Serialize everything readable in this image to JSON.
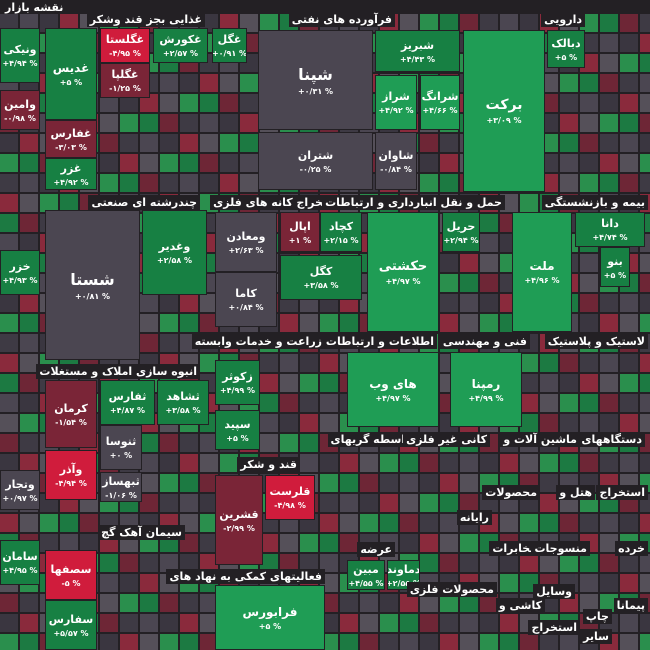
{
  "title": "نقشه بازار",
  "sectors": [
    "غذایی بجز قند وشکر",
    "فرآورده های نفتی",
    "دارویی",
    "چندرشته ای صنعتی",
    "استخراج کانه های فلزی",
    "حمل و نقل انبارداری و ارتباطات",
    "بیمه و بازنشستگی",
    "انبوه سازی املاک و مستغلات",
    "زراعت و خدمات وابسته",
    "اطلاعات و ارتباطات",
    "فنی و مهندسی",
    "لاستیک و پلاستیک",
    "واسطه گریهای",
    "کانی غیر فلزی",
    "ماشین آلات و",
    "دستگاههای",
    "قند و شکر",
    "محصولات",
    "هتل و",
    "استخراج",
    "سیمان آهک گچ",
    "رایانه",
    "عرضه",
    "مخابرات",
    "منسوجات",
    "خرده",
    "فعالیتهای کمکی به نهاد های",
    "محصولات فلزی",
    "وسایل",
    "کاشی و",
    "پیمانا",
    "چاپ",
    "استخراج",
    "سایر"
  ],
  "tiles": [
    {
      "name": "غدیس",
      "change": "+۵ %"
    },
    {
      "name": "غگلستا",
      "change": "-۴/۹۵ %"
    },
    {
      "name": "غکورش",
      "change": "+۲/۵۷ %"
    },
    {
      "name": "غگل",
      "change": "+۰/۹۱ %"
    },
    {
      "name": "غگلپا",
      "change": "-۱/۲۵ %"
    },
    {
      "name": "غفارس",
      "change": "-۳/۰۳ %"
    },
    {
      "name": "غزر",
      "change": "+۴/۹۲ %"
    },
    {
      "name": "ونیکی",
      "change": "+۴/۹۴ %"
    },
    {
      "name": "وامین",
      "change": "-۰/۹۸ %"
    },
    {
      "name": "شپنا",
      "change": "+۰/۳۱ %"
    },
    {
      "name": "شبریز",
      "change": "+۴/۴۳ %"
    },
    {
      "name": "شراز",
      "change": "+۴/۹۲ %"
    },
    {
      "name": "شرانگ",
      "change": "+۴/۶۶ %"
    },
    {
      "name": "شتران",
      "change": "-۰/۲۵ %"
    },
    {
      "name": "شاوان",
      "change": "-۰/۸۴ %"
    },
    {
      "name": "برکت",
      "change": "+۳/۰۹ %"
    },
    {
      "name": "دبالک",
      "change": "+۵ %"
    },
    {
      "name": "شستا",
      "change": "+۰/۸۱ %"
    },
    {
      "name": "وغدیر",
      "change": "+۲/۵۸ %"
    },
    {
      "name": "ومعادن",
      "change": "+۲/۶۳ %"
    },
    {
      "name": "کاما",
      "change": "+۰/۸۴ %"
    },
    {
      "name": "اپال",
      "change": "+۱ %"
    },
    {
      "name": "کچاد",
      "change": "+۲/۱۵ %"
    },
    {
      "name": "کگل",
      "change": "+۳/۵۸ %"
    },
    {
      "name": "حکشتی",
      "change": "+۴/۹۷ %"
    },
    {
      "name": "حریل",
      "change": "+۲/۹۴ %"
    },
    {
      "name": "ملت",
      "change": "+۴/۹۶ %"
    },
    {
      "name": "دانا",
      "change": "+۴/۷۴ %"
    },
    {
      "name": "بنو",
      "change": "+۵ %"
    },
    {
      "name": "کرمان",
      "change": "-۱/۵۴ %"
    },
    {
      "name": "ثفارس",
      "change": "+۴/۸۷ %"
    },
    {
      "name": "ثشاهد",
      "change": "+۳/۵۸ %"
    },
    {
      "name": "ثنوسا",
      "change": "+۰ %"
    },
    {
      "name": "وآذر",
      "change": "-۴/۹۴ %"
    },
    {
      "name": "ثبهساز",
      "change": "-۱/۰۶ %"
    },
    {
      "name": "زکوثر",
      "change": "+۴/۹۹ %"
    },
    {
      "name": "سپید",
      "change": "+۵ %"
    },
    {
      "name": "های وب",
      "change": "+۴/۹۷ %"
    },
    {
      "name": "رمپنا",
      "change": "+۴/۹۹ %"
    },
    {
      "name": "قشرین",
      "change": "-۲/۹۹ %"
    },
    {
      "name": "قلرست",
      "change": "-۴/۹۸ %"
    },
    {
      "name": "سصفها",
      "change": "-۵ %"
    },
    {
      "name": "سفارس",
      "change": "+۵/۵۷ %"
    },
    {
      "name": "سامان",
      "change": "+۴/۹۵ %"
    },
    {
      "name": "وتجار",
      "change": "+۰/۹۷ %"
    },
    {
      "name": "خزر",
      "change": "+۴/۹۳ %"
    },
    {
      "name": "فرابورس",
      "change": "+۵ %"
    },
    {
      "name": "مبین",
      "change": "+۴/۵۵ %"
    },
    {
      "name": "دماوند",
      "change": "+۲/۵۵ %"
    }
  ]
}
